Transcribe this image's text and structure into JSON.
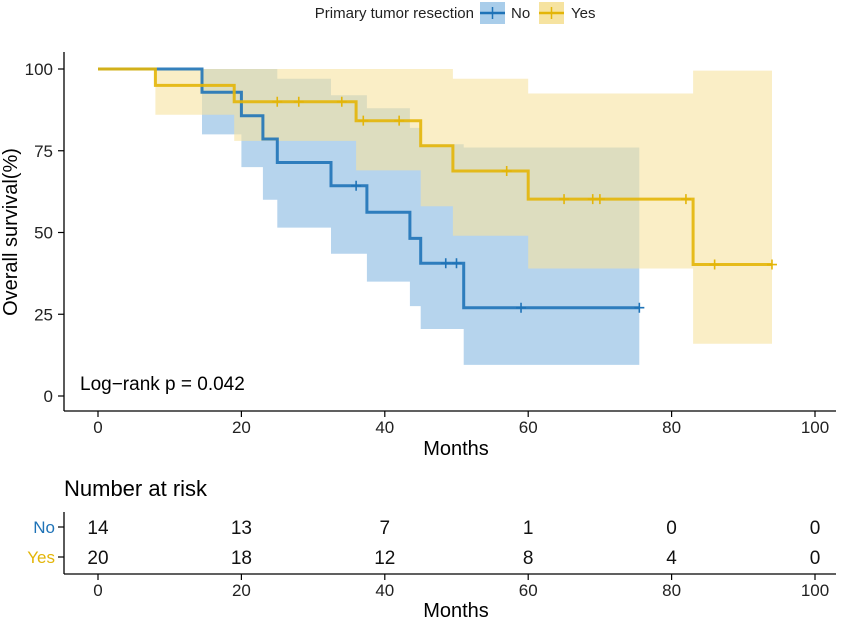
{
  "chart_data": {
    "type": "kaplan-meier",
    "legend": {
      "title": "Primary tumor resection",
      "entries": [
        "No",
        "Yes"
      ],
      "placement": "top"
    },
    "xlabel": "Months",
    "ylabel": "Overall survival(%)",
    "xlim": [
      0,
      100
    ],
    "ylim": [
      0,
      100
    ],
    "xticks": [
      0,
      20,
      40,
      60,
      80,
      100
    ],
    "yticks": [
      0,
      25,
      50,
      75,
      100
    ],
    "annotation": "Log−rank  p = 0.042",
    "series": [
      {
        "name": "No",
        "color": "#1f73b7",
        "ci_color": "#a9cdea",
        "steps": [
          [
            0,
            100
          ],
          [
            14.5,
            100
          ],
          [
            14.5,
            92.9
          ],
          [
            20,
            92.9
          ],
          [
            20,
            85.7
          ],
          [
            23,
            85.7
          ],
          [
            23,
            78.6
          ],
          [
            25,
            78.6
          ],
          [
            25,
            71.4
          ],
          [
            32.5,
            71.4
          ],
          [
            32.5,
            64.3
          ],
          [
            37.5,
            64.3
          ],
          [
            37.5,
            56.2
          ],
          [
            43.5,
            56.2
          ],
          [
            43.5,
            48.2
          ],
          [
            45,
            48.2
          ],
          [
            45,
            40.6
          ],
          [
            51,
            40.6
          ],
          [
            51,
            27.0
          ],
          [
            75.5,
            27.0
          ]
        ],
        "ci_upper": [
          [
            0,
            100
          ],
          [
            14.5,
            100
          ],
          [
            23,
            100
          ],
          [
            25,
            97
          ],
          [
            32.5,
            92
          ],
          [
            37.5,
            88
          ],
          [
            43.5,
            82
          ],
          [
            45,
            77
          ],
          [
            51,
            76
          ],
          [
            75.5,
            76
          ]
        ],
        "ci_lower": [
          [
            0,
            100
          ],
          [
            14.5,
            80
          ],
          [
            20,
            70
          ],
          [
            23,
            60
          ],
          [
            25,
            51.5
          ],
          [
            32.5,
            43.5
          ],
          [
            37.5,
            35
          ],
          [
            43.5,
            27.5
          ],
          [
            45,
            20.5
          ],
          [
            51,
            9.5
          ],
          [
            75.5,
            9.5
          ]
        ],
        "censors": [
          [
            36,
            64.3
          ],
          [
            48.5,
            40.6
          ],
          [
            50,
            40.6
          ],
          [
            59,
            27.0
          ],
          [
            75.5,
            27.0
          ]
        ]
      },
      {
        "name": "Yes",
        "color": "#e3b508",
        "ci_color": "#f6e3a0",
        "steps": [
          [
            0,
            100
          ],
          [
            8,
            100
          ],
          [
            8,
            95
          ],
          [
            19,
            95
          ],
          [
            19,
            90
          ],
          [
            36,
            90
          ],
          [
            36,
            84.2
          ],
          [
            45,
            84.2
          ],
          [
            45,
            76.5
          ],
          [
            49.5,
            76.5
          ],
          [
            49.5,
            68.8
          ],
          [
            60,
            68.8
          ],
          [
            60,
            60.2
          ],
          [
            83,
            60.2
          ],
          [
            83,
            40.2
          ],
          [
            94,
            40.2
          ]
        ],
        "ci_upper": [
          [
            0,
            100
          ],
          [
            8,
            100
          ],
          [
            36,
            100
          ],
          [
            49.5,
            97
          ],
          [
            60,
            92.5
          ],
          [
            83,
            99.5
          ],
          [
            94,
            99.5
          ]
        ],
        "ci_lower": [
          [
            0,
            100
          ],
          [
            8,
            86
          ],
          [
            19,
            78
          ],
          [
            25,
            78
          ],
          [
            36,
            69
          ],
          [
            45,
            58
          ],
          [
            49.5,
            49
          ],
          [
            60,
            39
          ],
          [
            83,
            16
          ],
          [
            94,
            16
          ]
        ],
        "censors": [
          [
            25,
            90
          ],
          [
            28,
            90
          ],
          [
            34,
            90
          ],
          [
            37,
            84.2
          ],
          [
            42,
            84.2
          ],
          [
            57,
            68.8
          ],
          [
            65,
            60.2
          ],
          [
            69,
            60.2
          ],
          [
            70,
            60.2
          ],
          [
            82,
            60.2
          ],
          [
            86,
            40.2
          ],
          [
            94,
            40.2
          ]
        ]
      }
    ]
  },
  "risk_table": {
    "title": "Number at risk",
    "xlabel": "Months",
    "times": [
      0,
      20,
      40,
      60,
      80,
      100
    ],
    "rows": [
      {
        "label": "No",
        "color": "#1f73b7",
        "counts": [
          14,
          13,
          7,
          1,
          0,
          0
        ]
      },
      {
        "label": "Yes",
        "color": "#e3b508",
        "counts": [
          20,
          18,
          12,
          8,
          4,
          0
        ]
      }
    ]
  }
}
